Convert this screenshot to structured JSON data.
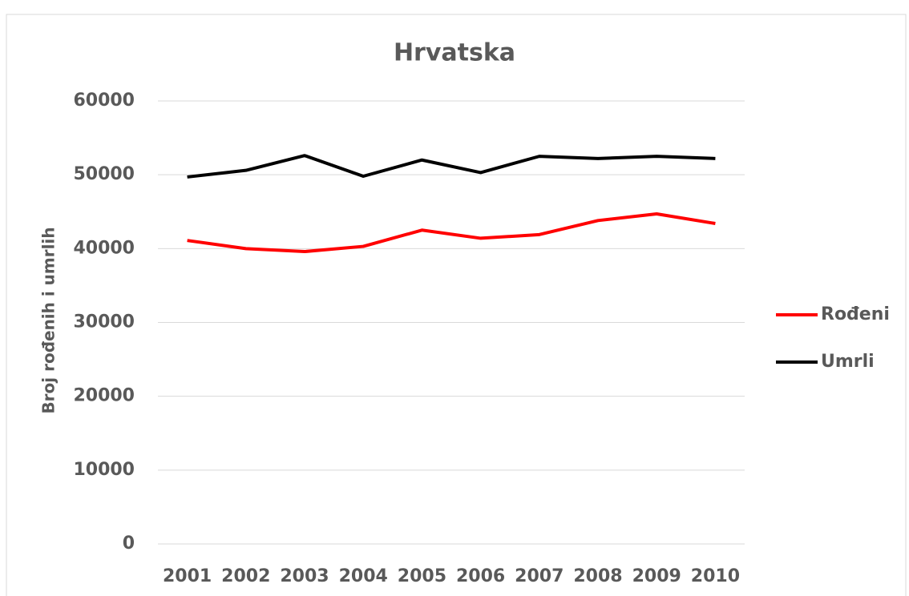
{
  "chart_data": {
    "type": "line",
    "title": "Hrvatska",
    "y_label": "Broj rođenih i umrlih",
    "categories": [
      "2001",
      "2002",
      "2003",
      "2004",
      "2005",
      "2006",
      "2007",
      "2008",
      "2009",
      "2010"
    ],
    "series": [
      {
        "name": "Rođeni",
        "color": "#ff0000",
        "values": [
          41100,
          40000,
          39600,
          40300,
          42500,
          41400,
          41900,
          43800,
          44700,
          43400
        ]
      },
      {
        "name": "Umrli",
        "color": "#000000",
        "values": [
          49700,
          50600,
          52600,
          49800,
          52000,
          50300,
          52500,
          52200,
          52500,
          52200
        ]
      }
    ],
    "ylim": [
      0,
      60000
    ],
    "yticks": [
      0,
      10000,
      20000,
      30000,
      40000,
      50000,
      60000
    ],
    "grid": true,
    "legend": "right"
  }
}
